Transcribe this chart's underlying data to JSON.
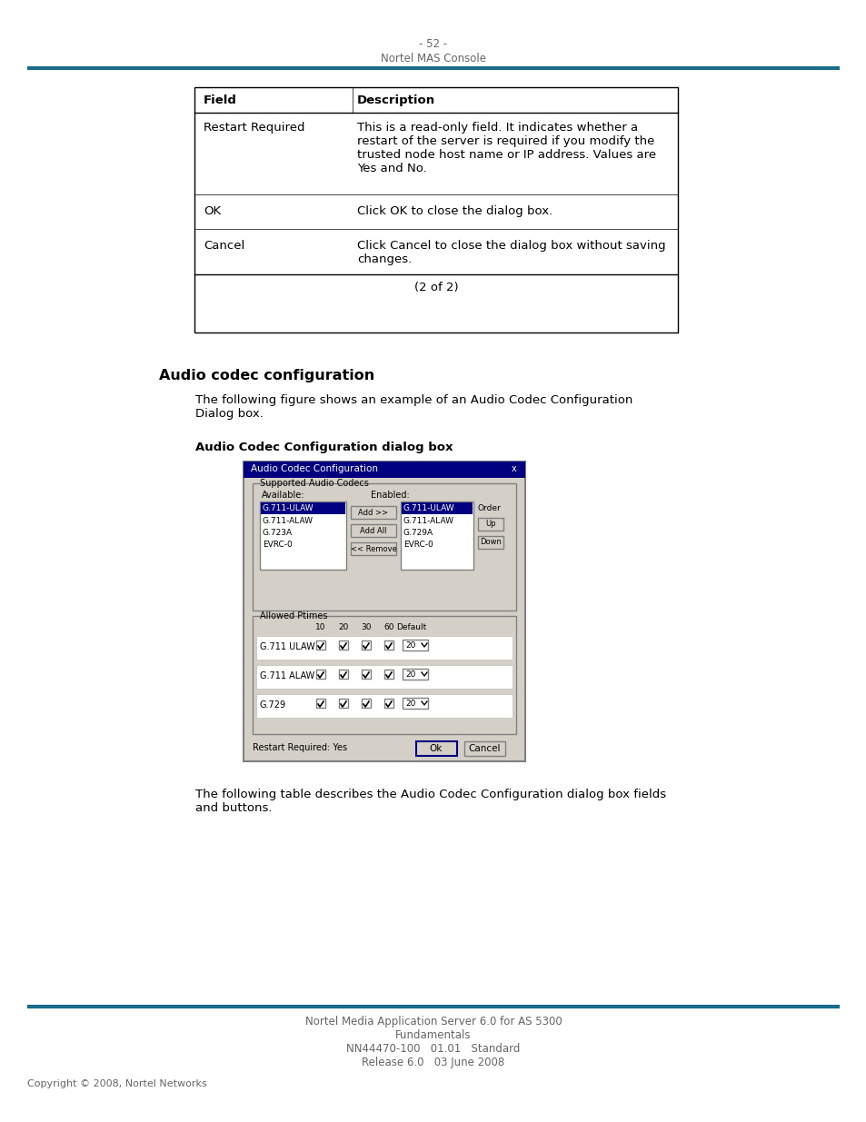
{
  "page_number": "- 52 -",
  "page_subtitle": "Nortel MAS Console",
  "header_line_color": "#1a6b8a",
  "table_rows": [
    {
      "field": "Field",
      "description": "Description",
      "is_header": true
    },
    {
      "field": "Restart Required",
      "description": "This is a read-only field. It indicates whether a\nrestart of the server is required if you modify the\ntrusted node host name or IP address. Values are\nYes and No.",
      "is_header": false
    },
    {
      "field": "OK",
      "description": "Click OK to close the dialog box.",
      "is_header": false
    },
    {
      "field": "Cancel",
      "description": "Click Cancel to close the dialog box without saving\nchanges.",
      "is_header": false
    },
    {
      "field": "(2 of 2)",
      "description": "",
      "is_footer": true
    }
  ],
  "section_title": "Audio codec configuration",
  "section_body": "The following figure shows an example of an Audio Codec Configuration\nDialog box.",
  "figure_caption": "Audio Codec Configuration dialog box",
  "body_text": "The following table describes the Audio Codec Configuration dialog box fields\nand buttons.",
  "footer_line_color": "#1a6b8a",
  "footer_text1": "Nortel Media Application Server 6.0 for AS 5300",
  "footer_text2": "Fundamentals",
  "footer_text3": "NN44470-100   01.01   Standard",
  "footer_text4": "Release 6.0   03 June 2008",
  "copyright": "Copyright © 2008, Nortel Networks",
  "bg_color": "#ffffff",
  "text_color": "#000000",
  "gray_text_color": "#666666",
  "table_border_color": "#000000",
  "table_header_bg": "#ffffff"
}
